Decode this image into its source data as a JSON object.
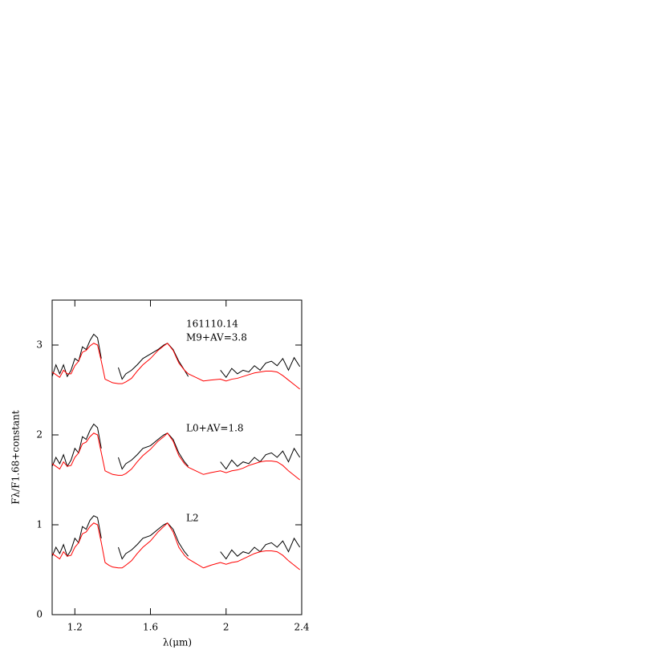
{
  "chart_data": {
    "type": "line",
    "xlabel": "λ(μm)",
    "ylabel": "Fλ/F1.68+constant",
    "x": [
      1.08,
      1.1,
      1.12,
      1.14,
      1.16,
      1.18,
      1.2,
      1.22,
      1.24,
      1.26,
      1.28,
      1.3,
      1.32,
      1.34,
      1.36,
      1.38,
      1.4,
      1.43,
      1.45,
      1.47,
      1.5,
      1.53,
      1.56,
      1.6,
      1.64,
      1.67,
      1.69,
      1.72,
      1.75,
      1.78,
      1.8,
      1.84,
      1.88,
      1.92,
      1.97,
      2.0,
      2.03,
      2.06,
      2.09,
      2.12,
      2.15,
      2.18,
      2.21,
      2.24,
      2.27,
      2.3,
      2.33,
      2.36,
      2.39
    ],
    "series": [
      {
        "color": "#000000",
        "values": [
          0.65,
          0.75,
          0.68,
          0.78,
          0.65,
          0.72,
          0.85,
          0.8,
          0.98,
          0.95,
          1.05,
          1.1,
          1.08,
          0.85,
          null,
          null,
          null,
          0.75,
          0.62,
          0.68,
          0.72,
          0.78,
          0.85,
          0.88,
          0.95,
          1.0,
          1.02,
          0.95,
          0.8,
          0.7,
          0.65,
          null,
          null,
          null,
          0.7,
          0.62,
          0.72,
          0.65,
          0.7,
          0.68,
          0.75,
          0.7,
          0.78,
          0.8,
          0.75,
          0.82,
          0.7,
          0.85,
          0.75
        ]
      },
      {
        "color": "#ff0000",
        "values": [
          0.68,
          0.65,
          0.62,
          0.7,
          0.65,
          0.66,
          0.75,
          0.8,
          0.9,
          0.92,
          0.98,
          1.02,
          1.0,
          0.8,
          0.58,
          0.55,
          0.53,
          0.52,
          0.52,
          0.55,
          0.6,
          0.68,
          0.75,
          0.82,
          0.92,
          0.98,
          1.02,
          0.92,
          0.75,
          0.66,
          0.62,
          0.57,
          0.52,
          0.55,
          0.58,
          0.56,
          0.58,
          0.59,
          0.62,
          0.65,
          0.68,
          0.7,
          0.71,
          0.71,
          0.7,
          0.66,
          0.6,
          0.55,
          0.5
        ]
      },
      {
        "color": "#000000",
        "values": [
          1.65,
          1.75,
          1.68,
          1.78,
          1.65,
          1.72,
          1.85,
          1.8,
          1.98,
          1.95,
          2.05,
          2.12,
          2.08,
          1.85,
          null,
          null,
          null,
          1.75,
          1.62,
          1.68,
          1.72,
          1.78,
          1.85,
          1.88,
          1.95,
          2.0,
          2.02,
          1.95,
          1.8,
          1.7,
          1.65,
          null,
          null,
          null,
          1.7,
          1.62,
          1.72,
          1.65,
          1.7,
          1.68,
          1.75,
          1.7,
          1.78,
          1.8,
          1.75,
          1.82,
          1.7,
          1.85,
          1.75
        ]
      },
      {
        "color": "#ff0000",
        "values": [
          1.68,
          1.65,
          1.62,
          1.7,
          1.65,
          1.66,
          1.75,
          1.8,
          1.9,
          1.92,
          1.98,
          2.02,
          2.0,
          1.8,
          1.6,
          1.58,
          1.56,
          1.55,
          1.55,
          1.57,
          1.62,
          1.7,
          1.77,
          1.84,
          1.93,
          1.98,
          2.02,
          1.93,
          1.77,
          1.68,
          1.64,
          1.6,
          1.56,
          1.58,
          1.6,
          1.58,
          1.6,
          1.61,
          1.63,
          1.66,
          1.68,
          1.7,
          1.71,
          1.71,
          1.7,
          1.66,
          1.6,
          1.55,
          1.5
        ]
      },
      {
        "color": "#000000",
        "values": [
          2.65,
          2.78,
          2.68,
          2.78,
          2.65,
          2.72,
          2.85,
          2.82,
          2.98,
          2.95,
          3.05,
          3.12,
          3.08,
          2.85,
          null,
          null,
          null,
          2.75,
          2.62,
          2.68,
          2.72,
          2.78,
          2.85,
          2.9,
          2.95,
          3.0,
          3.02,
          2.95,
          2.82,
          2.72,
          2.65,
          null,
          null,
          null,
          2.72,
          2.64,
          2.74,
          2.68,
          2.72,
          2.7,
          2.77,
          2.72,
          2.8,
          2.82,
          2.77,
          2.85,
          2.72,
          2.86,
          2.76
        ]
      },
      {
        "color": "#ff0000",
        "values": [
          2.7,
          2.67,
          2.64,
          2.72,
          2.68,
          2.68,
          2.77,
          2.82,
          2.92,
          2.94,
          2.99,
          3.02,
          3.0,
          2.82,
          2.62,
          2.6,
          2.58,
          2.57,
          2.57,
          2.59,
          2.63,
          2.71,
          2.78,
          2.85,
          2.94,
          2.99,
          3.02,
          2.94,
          2.8,
          2.72,
          2.68,
          2.64,
          2.6,
          2.61,
          2.62,
          2.6,
          2.62,
          2.63,
          2.65,
          2.67,
          2.69,
          2.7,
          2.71,
          2.71,
          2.7,
          2.66,
          2.61,
          2.56,
          2.51
        ]
      }
    ],
    "annotations": [
      {
        "text": "161110.14",
        "color": "#000000"
      },
      {
        "text": "M9+AV=3.8",
        "color": "#ff0000"
      },
      {
        "text": "L0+AV=1.8",
        "color": "#ff0000"
      },
      {
        "text": "L2",
        "color": "#ff0000"
      }
    ],
    "xlim": [
      1.08,
      2.4
    ],
    "ylim": [
      0,
      3.5
    ],
    "xticks": [
      1.2,
      1.6,
      2,
      2.4
    ],
    "yticks": [
      0,
      1,
      2,
      3
    ]
  }
}
